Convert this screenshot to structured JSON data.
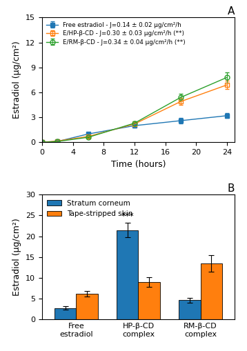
{
  "chart_data": [
    {
      "type": "line",
      "title": "A",
      "xlabel": "Time (hours)",
      "ylabel": "Estradiol (μg/cm²)",
      "xlim": [
        0,
        25
      ],
      "ylim": [
        0,
        15
      ],
      "xticks": [
        0,
        4,
        8,
        12,
        16,
        20,
        24
      ],
      "yticks": [
        0,
        3,
        6,
        9,
        12,
        15
      ],
      "legend": "upper left",
      "series": [
        {
          "name": "Free estradiol - J=0.14 ± 0.02 μg/cm²/h",
          "x": [
            0,
            2,
            6,
            12,
            18,
            24
          ],
          "values": [
            0.0,
            0.1,
            1.0,
            2.0,
            2.6,
            3.2
          ],
          "yerr": [
            0.0,
            0.05,
            0.15,
            0.2,
            0.3,
            0.3
          ],
          "marker": "square",
          "line_style": "solid"
        },
        {
          "name": "E/HP-β-CD - J=0.30 ± 0.03 μg/cm²/h (**)",
          "x": [
            0,
            2,
            6,
            12,
            18,
            24
          ],
          "values": [
            0.0,
            0.15,
            0.7,
            2.2,
            4.9,
            6.9
          ],
          "yerr": [
            0.0,
            0.05,
            0.1,
            0.3,
            0.4,
            0.5
          ],
          "marker": "open square",
          "line_style": "solid"
        },
        {
          "name": "E/RM-β-CD - J=0.34 ± 0.04 μg/cm²/h (**)",
          "x": [
            0,
            2,
            6,
            12,
            18,
            24
          ],
          "values": [
            0.0,
            0.1,
            0.6,
            2.3,
            5.4,
            7.8
          ],
          "yerr": [
            0.0,
            0.05,
            0.1,
            0.25,
            0.4,
            0.6
          ],
          "marker": "open circle",
          "line_style": "solid"
        }
      ]
    },
    {
      "type": "bar",
      "title": "B",
      "ylabel": "Estradiol (μg/cm²)",
      "ylim": [
        0,
        30
      ],
      "yticks": [
        0,
        5,
        10,
        15,
        20,
        25,
        30
      ],
      "legend": "upper left",
      "categories": [
        "Free\nestradiol",
        "HP-β-CD\ncomplex",
        "RM-β-CD\ncomplex"
      ],
      "series": [
        {
          "name": "Stratum corneum",
          "values": [
            2.7,
            21.5,
            4.6
          ],
          "yerr": [
            0.4,
            1.8,
            0.6
          ]
        },
        {
          "name": "Tape-stripped skin",
          "values": [
            6.2,
            9.0,
            13.5
          ],
          "yerr": [
            0.7,
            1.2,
            2.0
          ]
        }
      ],
      "annotations": [
        {
          "text": "***",
          "category": "HP-β-CD\ncomplex",
          "series": "Stratum corneum"
        }
      ]
    }
  ]
}
